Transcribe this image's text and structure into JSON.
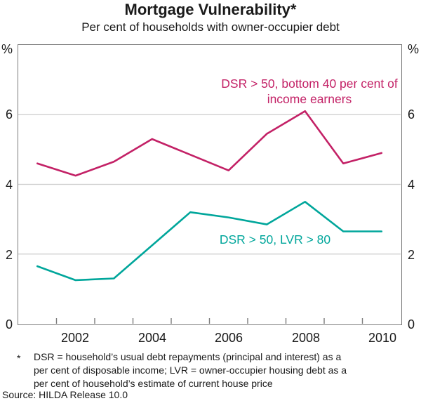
{
  "title": "Mortgage Vulnerability*",
  "subtitle": "Per cent of households with owner-occupier debt",
  "y_axis": {
    "unit": "%",
    "tick_labels": [
      "6",
      "4",
      "2",
      "0"
    ]
  },
  "x_axis": {
    "tick_labels": [
      "2002",
      "2004",
      "2006",
      "2008",
      "2010"
    ]
  },
  "series_labels": {
    "dsr_bottom40_line1": "DSR > 50, bottom 40 per cent of",
    "dsr_bottom40_line2": "income earners",
    "dsr_lvr": "DSR > 50, LVR > 80"
  },
  "footnote": {
    "marker": "*",
    "lines": [
      "DSR = household’s usual debt repayments (principal and interest) as a",
      "per cent of disposable income; LVR = owner-occupier housing debt as a",
      "per cent of household’s estimate of current house price"
    ]
  },
  "source": "Source: HILDA Release 10.0",
  "colors": {
    "gridline": "#cccccc",
    "axis": "#7b7b7b",
    "text": "#1a1a1a"
  },
  "chart_data": {
    "type": "line",
    "title": "Mortgage Vulnerability*",
    "subtitle": "Per cent of households with owner-occupier debt",
    "x": [
      2001,
      2002,
      2003,
      2004,
      2005,
      2006,
      2007,
      2008,
      2009,
      2010
    ],
    "series": [
      {
        "name": "DSR > 50, bottom 40 per cent of income earners",
        "color": "#c32166",
        "values": [
          4.6,
          4.25,
          4.65,
          5.3,
          4.85,
          4.4,
          5.45,
          6.1,
          4.6,
          4.9
        ]
      },
      {
        "name": "DSR > 50, LVR > 80",
        "color": "#00a69b",
        "values": [
          1.65,
          1.25,
          1.3,
          2.25,
          3.2,
          3.05,
          2.85,
          3.5,
          2.65,
          2.65
        ]
      }
    ],
    "ylabel": "%",
    "ylim": [
      0,
      8
    ],
    "y_gridlines": [
      2,
      4,
      6
    ],
    "y_tick_interval": 2,
    "x_tick_labels": [
      "2002",
      "2004",
      "2006",
      "2008",
      "2010"
    ],
    "grid": true,
    "legend_position": "inline-annotations",
    "source": "Source: HILDA Release 10.0"
  }
}
